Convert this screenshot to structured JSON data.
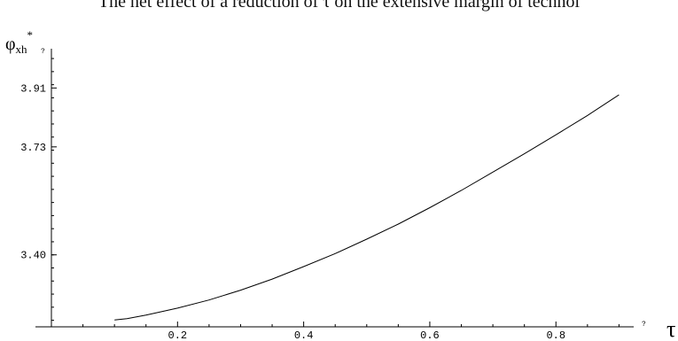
{
  "caption": "The net effect of a reduction of τ on the extensive margin of technol",
  "chart_data": {
    "type": "line",
    "title": "",
    "xlabel": "τ",
    "ylabel": "φxh*",
    "ylabel_main": "φ",
    "ylabel_sub": "xh",
    "ylabel_sup": "*",
    "axis_marker": "?",
    "xlim": [
      0.0,
      0.95
    ],
    "ylim": [
      3.18,
      4.03
    ],
    "xticks": [
      {
        "value": 0.2,
        "label": "0.2"
      },
      {
        "value": 0.4,
        "label": "0.4"
      },
      {
        "value": 0.6,
        "label": "0.6"
      },
      {
        "value": 0.8,
        "label": "0.8"
      }
    ],
    "yticks": [
      {
        "value": 3.4,
        "label": "3.40"
      },
      {
        "value": 3.73,
        "label": "3.73"
      },
      {
        "value": 3.91,
        "label": "3.91"
      }
    ],
    "grid": false,
    "series": [
      {
        "x": [
          0.1,
          0.12,
          0.15,
          0.2,
          0.25,
          0.3,
          0.35,
          0.4,
          0.45,
          0.5,
          0.55,
          0.6,
          0.65,
          0.7,
          0.75,
          0.8,
          0.85,
          0.9
        ],
        "y": [
          3.201,
          3.205,
          3.216,
          3.237,
          3.262,
          3.292,
          3.326,
          3.364,
          3.404,
          3.448,
          3.494,
          3.544,
          3.597,
          3.653,
          3.709,
          3.767,
          3.826,
          3.889
        ]
      }
    ]
  }
}
